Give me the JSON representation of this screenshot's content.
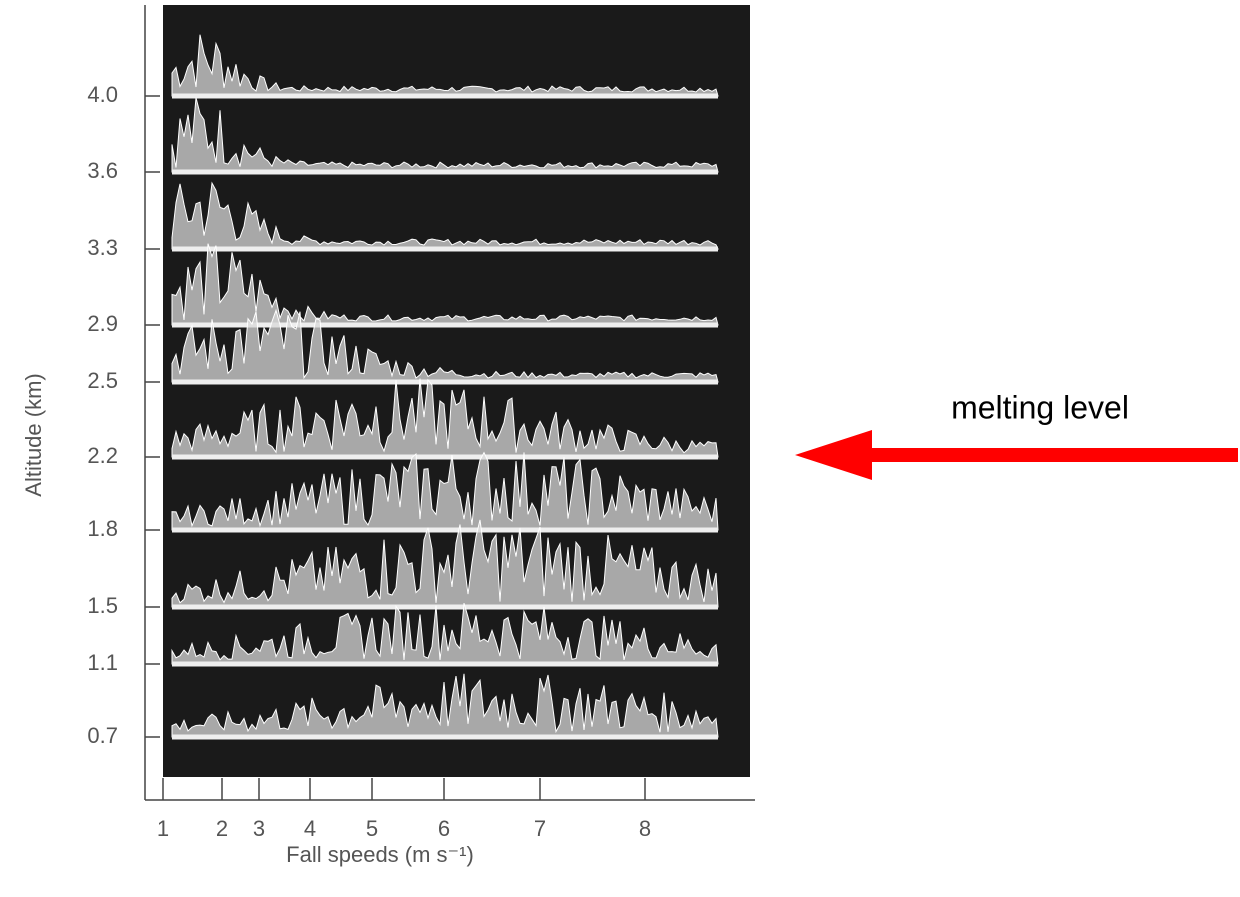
{
  "chart_data": {
    "type": "spectra",
    "y_label": "Altitude (km)",
    "x_label": "Fall speeds (m s⁻¹)",
    "yticks": [
      {
        "value": 4,
        "label": "4.0"
      },
      3.6,
      3.3,
      2.9,
      2.5,
      2.2,
      1.8,
      1.5,
      1.1,
      0.7
    ],
    "xticks": [
      1,
      2,
      3,
      4,
      5,
      6,
      7,
      8
    ],
    "annotation": "melting level",
    "annotation_color": "#ff0000"
  }
}
